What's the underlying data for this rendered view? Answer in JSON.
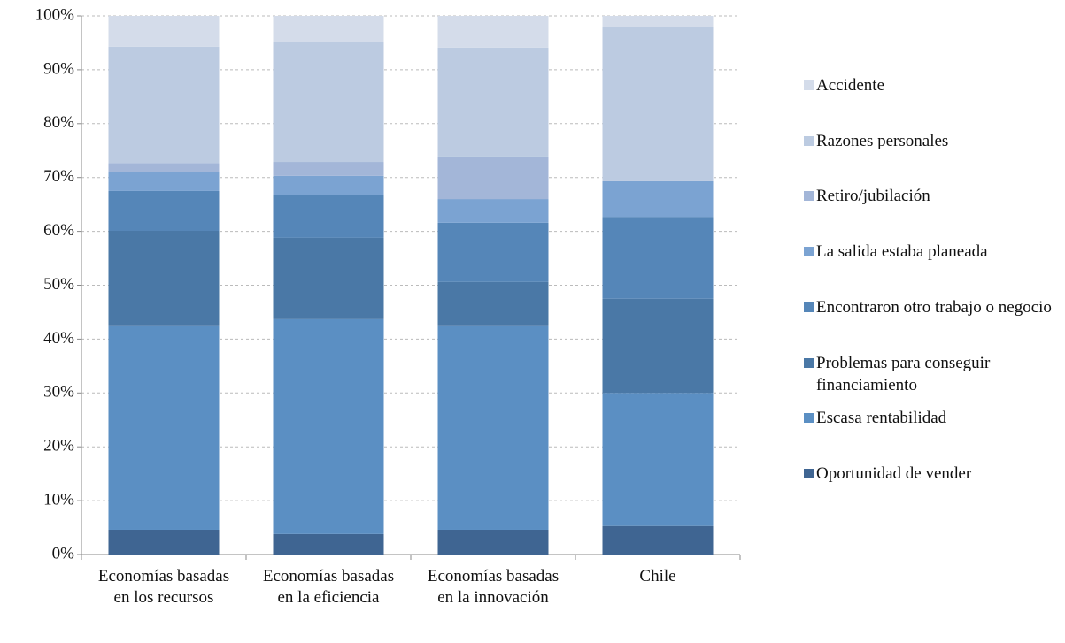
{
  "chart_data": {
    "type": "stacked_bar",
    "categories": [
      "Economías basadas en los recursos",
      "Economías basadas en la eficiencia",
      "Economías basadas en la innovación",
      "Chile"
    ],
    "series": [
      {
        "name": "Oportunidad de vender",
        "color": "#3f6592",
        "values": [
          4.6,
          3.8,
          4.6,
          5.3
        ]
      },
      {
        "name": "Escasa rentabilidad",
        "color": "#5b8fc3",
        "values": [
          37.8,
          39.9,
          37.8,
          24.7
        ]
      },
      {
        "name": "Problemas para conseguir financiamiento",
        "color": "#4a78a6",
        "values": [
          17.7,
          15.1,
          8.2,
          17.5
        ]
      },
      {
        "name": "Encontraron otro trabajo o negocio",
        "color": "#5586b8",
        "values": [
          7.4,
          8.0,
          11.0,
          15.2
        ]
      },
      {
        "name": "La salida estaba planeada",
        "color": "#7ba3d2",
        "values": [
          3.6,
          3.5,
          4.4,
          6.6
        ]
      },
      {
        "name": "Retiro/jubilación",
        "color": "#a3b6d8",
        "values": [
          1.6,
          2.6,
          7.9,
          0
        ]
      },
      {
        "name": "Razones personales",
        "color": "#bccbe1",
        "values": [
          21.6,
          22.3,
          20.2,
          28.6
        ]
      },
      {
        "name": "Accidente",
        "color": "#d4dcea",
        "values": [
          5.7,
          4.8,
          5.9,
          2.1
        ]
      }
    ],
    "ylim": [
      0,
      100
    ],
    "yticks": [
      {
        "value": 0,
        "label": "0%"
      },
      {
        "value": 10,
        "label": "10%"
      },
      {
        "value": 20,
        "label": "20%"
      },
      {
        "value": 30,
        "label": "30%"
      },
      {
        "value": 40,
        "label": "40%"
      },
      {
        "value": 50,
        "label": "50%"
      },
      {
        "value": 60,
        "label": "60%"
      },
      {
        "value": 70,
        "label": "70%"
      },
      {
        "value": 80,
        "label": "80%"
      },
      {
        "value": 90,
        "label": "90%"
      },
      {
        "value": 100,
        "label": "100%"
      }
    ],
    "grid": true,
    "legend": "right"
  }
}
